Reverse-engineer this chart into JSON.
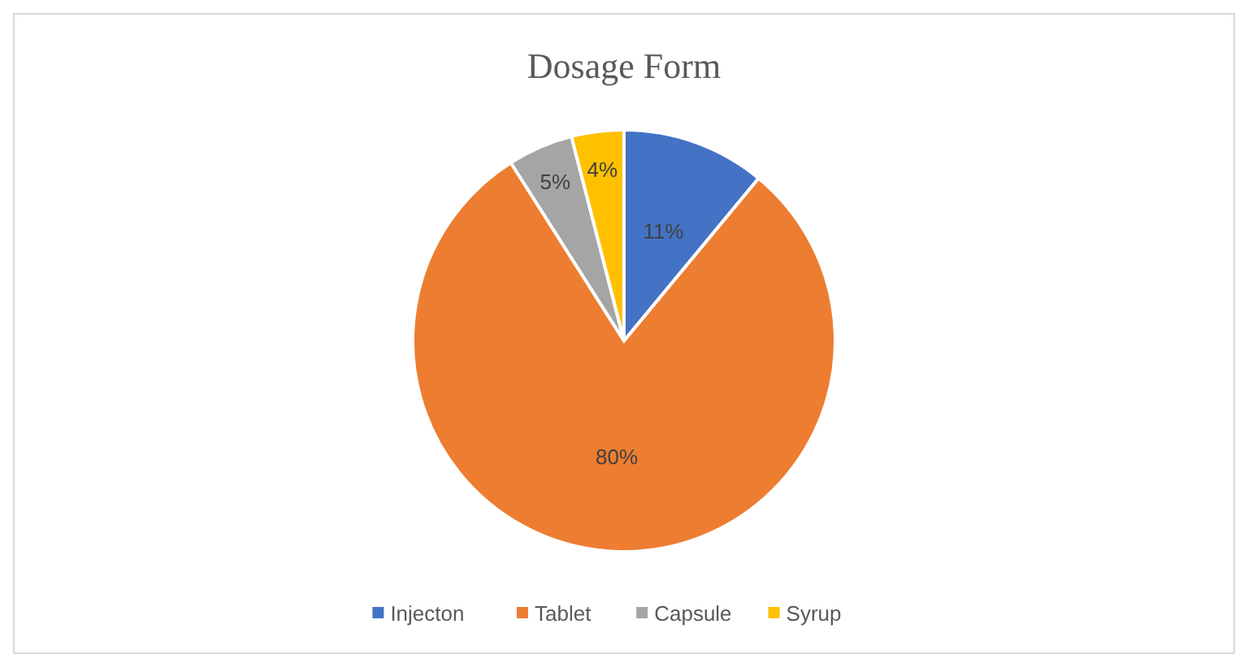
{
  "chart_data": {
    "type": "pie",
    "title": "Dosage Form",
    "categories": [
      "Injecton",
      "Tablet",
      "Capsule",
      "Syrup"
    ],
    "values": [
      11,
      80,
      5,
      4
    ],
    "colors": [
      "#4472c4",
      "#ed7d31",
      "#a5a5a5",
      "#ffc000"
    ],
    "value_labels": [
      "11%",
      "80%",
      "5%",
      "4%"
    ],
    "legend": "bottom"
  }
}
